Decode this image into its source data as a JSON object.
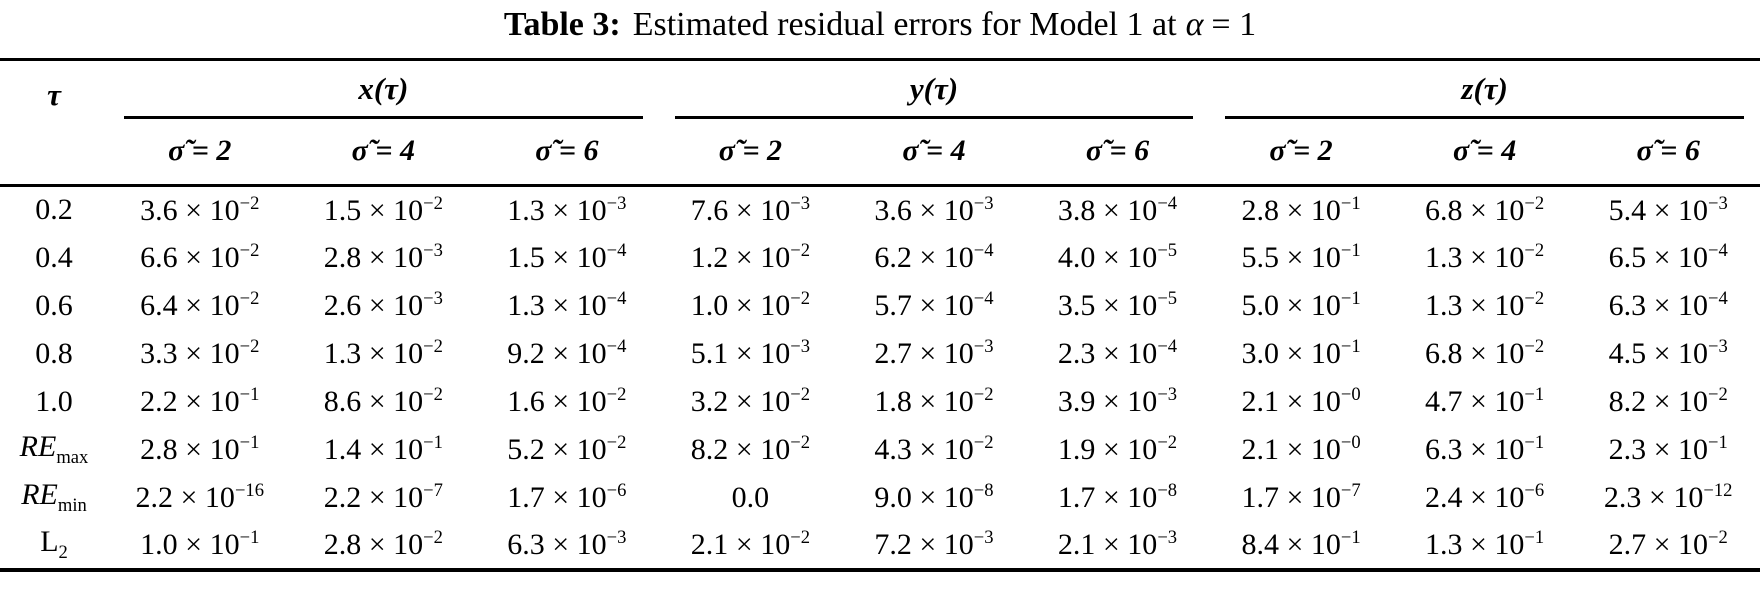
{
  "colors": {
    "text": "#000000",
    "background": "#ffffff",
    "rule": "#000000"
  },
  "title": {
    "label": "Table 3:",
    "text": "Estimated residual errors for Model 1 at",
    "math_var": "α",
    "math_eq": "= 1"
  },
  "table": {
    "corner_label": "τ",
    "groups": [
      {
        "label": "x(τ)",
        "sublabels": [
          "σ̃ = 2",
          "σ̃ = 4",
          "σ̃ = 6"
        ]
      },
      {
        "label": "y(τ)",
        "sublabels": [
          "σ̃ = 2",
          "σ̃ = 4",
          "σ̃ = 6"
        ]
      },
      {
        "label": "z(τ)",
        "sublabels": [
          "σ̃ = 2",
          "σ̃ = 4",
          "σ̃ = 6"
        ]
      }
    ],
    "rows": [
      {
        "label": {
          "text": "0.2"
        },
        "cells": [
          [
            "3.6",
            "−2"
          ],
          [
            "1.5",
            "−2"
          ],
          [
            "1.3",
            "−3"
          ],
          [
            "7.6",
            "−3"
          ],
          [
            "3.6",
            "−3"
          ],
          [
            "3.8",
            "−4"
          ],
          [
            "2.8",
            "−1"
          ],
          [
            "6.8",
            "−2"
          ],
          [
            "5.4",
            "−3"
          ]
        ]
      },
      {
        "label": {
          "text": "0.4"
        },
        "cells": [
          [
            "6.6",
            "−2"
          ],
          [
            "2.8",
            "−3"
          ],
          [
            "1.5",
            "−4"
          ],
          [
            "1.2",
            "−2"
          ],
          [
            "6.2",
            "−4"
          ],
          [
            "4.0",
            "−5"
          ],
          [
            "5.5",
            "−1"
          ],
          [
            "1.3",
            "−2"
          ],
          [
            "6.5",
            "−4"
          ]
        ]
      },
      {
        "label": {
          "text": "0.6"
        },
        "cells": [
          [
            "6.4",
            "−2"
          ],
          [
            "2.6",
            "−3"
          ],
          [
            "1.3",
            "−4"
          ],
          [
            "1.0",
            "−2"
          ],
          [
            "5.7",
            "−4"
          ],
          [
            "3.5",
            "−5"
          ],
          [
            "5.0",
            "−1"
          ],
          [
            "1.3",
            "−2"
          ],
          [
            "6.3",
            "−4"
          ]
        ]
      },
      {
        "label": {
          "text": "0.8"
        },
        "cells": [
          [
            "3.3",
            "−2"
          ],
          [
            "1.3",
            "−2"
          ],
          [
            "9.2",
            "−4"
          ],
          [
            "5.1",
            "−3"
          ],
          [
            "2.7",
            "−3"
          ],
          [
            "2.3",
            "−4"
          ],
          [
            "3.0",
            "−1"
          ],
          [
            "6.8",
            "−2"
          ],
          [
            "4.5",
            "−3"
          ]
        ]
      },
      {
        "label": {
          "text": "1.0"
        },
        "cells": [
          [
            "2.2",
            "−1"
          ],
          [
            "8.6",
            "−2"
          ],
          [
            "1.6",
            "−2"
          ],
          [
            "3.2",
            "−2"
          ],
          [
            "1.8",
            "−2"
          ],
          [
            "3.9",
            "−3"
          ],
          [
            "2.1",
            "−0"
          ],
          [
            "4.7",
            "−1"
          ],
          [
            "8.2",
            "−2"
          ]
        ]
      },
      {
        "label": {
          "text": "RE",
          "sub": "max",
          "style": "italic"
        },
        "cells": [
          [
            "2.8",
            "−1"
          ],
          [
            "1.4",
            "−1"
          ],
          [
            "5.2",
            "−2"
          ],
          [
            "8.2",
            "−2"
          ],
          [
            "4.3",
            "−2"
          ],
          [
            "1.9",
            "−2"
          ],
          [
            "2.1",
            "−0"
          ],
          [
            "6.3",
            "−1"
          ],
          [
            "2.3",
            "−1"
          ]
        ]
      },
      {
        "label": {
          "text": "RE",
          "sub": "min",
          "style": "italic"
        },
        "cells": [
          [
            "2.2",
            "−16"
          ],
          [
            "2.2",
            "−7"
          ],
          [
            "1.7",
            "−6"
          ],
          "0.0",
          [
            "9.0",
            "−8"
          ],
          [
            "1.7",
            "−8"
          ],
          [
            "1.7",
            "−7"
          ],
          [
            "2.4",
            "−6"
          ],
          [
            "2.3",
            "−12"
          ]
        ]
      },
      {
        "label": {
          "text": "L",
          "sub": "2"
        },
        "cells": [
          [
            "1.0",
            "−1"
          ],
          [
            "2.8",
            "−2"
          ],
          [
            "6.3",
            "−3"
          ],
          [
            "2.1",
            "−2"
          ],
          [
            "7.2",
            "−3"
          ],
          [
            "2.1",
            "−3"
          ],
          [
            "8.4",
            "−1"
          ],
          [
            "1.3",
            "−1"
          ],
          [
            "2.7",
            "−2"
          ]
        ]
      }
    ]
  }
}
